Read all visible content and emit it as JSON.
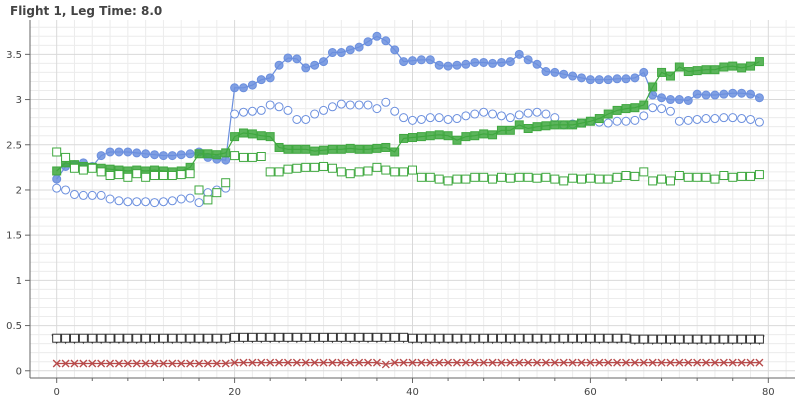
{
  "title": "Flight 1, Leg Time: 8.0",
  "colors": {
    "blue": "#6b8fde",
    "blue_line": "#4a6fd0",
    "green": "#3fa83f",
    "green_line": "#2a8a2a",
    "dark": "#333333",
    "red": "#b84b4b",
    "grid_major": "#d9d9d9",
    "grid_minor": "#ececec",
    "axis": "#666666",
    "tick_text": "#444444"
  },
  "chart_data": {
    "type": "line",
    "title": "Flight 1, Leg Time: 8.0",
    "xlabel": "",
    "ylabel": "",
    "xlim": [
      -3,
      83
    ],
    "ylim": [
      -0.08,
      3.88
    ],
    "x_ticks": [
      0,
      20,
      40,
      60,
      80
    ],
    "x_tick_labels": [
      "0",
      "20",
      "40",
      "60",
      "80"
    ],
    "y_ticks": [
      0,
      0.5,
      1,
      1.5,
      2,
      2.5,
      3,
      3.5
    ],
    "y_tick_labels": [
      "0",
      "0.5",
      "1",
      "1.5",
      "2",
      "2.5",
      "3",
      "3.5"
    ],
    "grid": true,
    "minor_grid": true,
    "series": [
      {
        "style": "blue-filled-circle",
        "marker": "circle",
        "filled": true,
        "line": true,
        "color": "#6b8fde",
        "x": [
          0,
          1,
          2,
          3,
          4,
          5,
          6,
          7,
          8,
          9,
          10,
          11,
          12,
          13,
          14,
          15,
          16,
          17,
          18,
          19,
          20,
          21,
          22,
          23,
          24,
          25,
          26,
          27,
          28,
          29,
          30,
          31,
          32,
          33,
          34,
          35,
          36,
          37,
          38,
          39,
          40,
          41,
          42,
          43,
          44,
          45,
          46,
          47,
          48,
          49,
          50,
          51,
          52,
          53,
          54,
          55,
          56,
          57,
          58,
          59,
          60,
          61,
          62,
          63,
          64,
          65,
          66,
          67,
          68,
          69,
          70,
          71,
          72,
          73,
          74,
          75,
          76,
          77,
          78,
          79
        ],
        "y": [
          2.12,
          2.26,
          2.28,
          2.3,
          2.26,
          2.38,
          2.42,
          2.42,
          2.42,
          2.41,
          2.4,
          2.39,
          2.38,
          2.38,
          2.39,
          2.4,
          2.42,
          2.36,
          2.34,
          2.33,
          3.13,
          3.13,
          3.16,
          3.22,
          3.24,
          3.38,
          3.46,
          3.45,
          3.35,
          3.38,
          3.42,
          3.52,
          3.52,
          3.55,
          3.58,
          3.64,
          3.7,
          3.65,
          3.55,
          3.42,
          3.43,
          3.44,
          3.44,
          3.38,
          3.37,
          3.38,
          3.39,
          3.41,
          3.41,
          3.4,
          3.41,
          3.42,
          3.5,
          3.44,
          3.39,
          3.31,
          3.3,
          3.28,
          3.26,
          3.24,
          3.22,
          3.22,
          3.22,
          3.23,
          3.23,
          3.24,
          3.3,
          3.05,
          3.02,
          3.0,
          3.0,
          2.99,
          3.06,
          3.05,
          3.05,
          3.06,
          3.07,
          3.07,
          3.06,
          3.02
        ]
      },
      {
        "style": "blue-open-circle",
        "marker": "circle",
        "filled": false,
        "line": false,
        "color": "#6b8fde",
        "x": [
          0,
          1,
          2,
          3,
          4,
          5,
          6,
          7,
          8,
          9,
          10,
          11,
          12,
          13,
          14,
          15,
          16,
          17,
          18,
          19,
          20,
          21,
          22,
          23,
          24,
          25,
          26,
          27,
          28,
          29,
          30,
          31,
          32,
          33,
          34,
          35,
          36,
          37,
          38,
          39,
          40,
          41,
          42,
          43,
          44,
          45,
          46,
          47,
          48,
          49,
          50,
          51,
          52,
          53,
          54,
          55,
          56,
          57,
          58,
          59,
          60,
          61,
          62,
          63,
          64,
          65,
          66,
          67,
          68,
          69,
          70,
          71,
          72,
          73,
          74,
          75,
          76,
          77,
          78,
          79
        ],
        "y": [
          2.02,
          2.0,
          1.95,
          1.94,
          1.94,
          1.94,
          1.9,
          1.88,
          1.87,
          1.87,
          1.87,
          1.86,
          1.87,
          1.88,
          1.9,
          1.91,
          1.86,
          1.97,
          2.0,
          2.02,
          2.84,
          2.86,
          2.87,
          2.88,
          2.94,
          2.92,
          2.88,
          2.78,
          2.78,
          2.84,
          2.88,
          2.92,
          2.95,
          2.94,
          2.94,
          2.94,
          2.9,
          2.97,
          2.87,
          2.8,
          2.77,
          2.78,
          2.8,
          2.8,
          2.78,
          2.79,
          2.82,
          2.84,
          2.86,
          2.84,
          2.82,
          2.8,
          2.83,
          2.85,
          2.86,
          2.84,
          2.8,
          2.72,
          2.73,
          2.74,
          2.76,
          2.75,
          2.74,
          2.76,
          2.76,
          2.77,
          2.82,
          2.91,
          2.9,
          2.87,
          2.76,
          2.77,
          2.78,
          2.79,
          2.79,
          2.8,
          2.8,
          2.79,
          2.78,
          2.75
        ]
      },
      {
        "style": "green-filled-square",
        "marker": "square",
        "filled": true,
        "line": true,
        "color": "#3fa83f",
        "x": [
          0,
          1,
          2,
          3,
          4,
          5,
          6,
          7,
          8,
          9,
          10,
          11,
          12,
          13,
          14,
          15,
          16,
          17,
          18,
          19,
          20,
          21,
          22,
          23,
          24,
          25,
          26,
          27,
          28,
          29,
          30,
          31,
          32,
          33,
          34,
          35,
          36,
          37,
          38,
          39,
          40,
          41,
          42,
          43,
          44,
          45,
          46,
          47,
          48,
          49,
          50,
          51,
          52,
          53,
          54,
          55,
          56,
          57,
          58,
          59,
          60,
          61,
          62,
          63,
          64,
          65,
          66,
          67,
          68,
          69,
          70,
          71,
          72,
          73,
          74,
          75,
          76,
          77,
          78,
          79
        ],
        "y": [
          2.21,
          2.3,
          2.28,
          2.26,
          2.25,
          2.24,
          2.23,
          2.22,
          2.21,
          2.22,
          2.21,
          2.22,
          2.21,
          2.2,
          2.21,
          2.25,
          2.4,
          2.4,
          2.39,
          2.41,
          2.59,
          2.63,
          2.62,
          2.6,
          2.59,
          2.47,
          2.45,
          2.45,
          2.45,
          2.43,
          2.44,
          2.45,
          2.45,
          2.46,
          2.45,
          2.45,
          2.46,
          2.47,
          2.42,
          2.57,
          2.58,
          2.59,
          2.6,
          2.61,
          2.6,
          2.55,
          2.59,
          2.6,
          2.62,
          2.61,
          2.66,
          2.66,
          2.72,
          2.68,
          2.7,
          2.71,
          2.72,
          2.72,
          2.72,
          2.74,
          2.76,
          2.79,
          2.84,
          2.88,
          2.9,
          2.91,
          2.94,
          3.14,
          3.3,
          3.26,
          3.36,
          3.31,
          3.32,
          3.33,
          3.33,
          3.36,
          3.37,
          3.35,
          3.37,
          3.42
        ]
      },
      {
        "style": "green-open-square",
        "marker": "square",
        "filled": false,
        "line": false,
        "color": "#3fa83f",
        "x": [
          0,
          1,
          2,
          3,
          4,
          5,
          6,
          7,
          8,
          9,
          10,
          11,
          12,
          13,
          14,
          15,
          16,
          17,
          18,
          19,
          20,
          21,
          22,
          23,
          24,
          25,
          26,
          27,
          28,
          29,
          30,
          31,
          32,
          33,
          34,
          35,
          36,
          37,
          38,
          39,
          40,
          41,
          42,
          43,
          44,
          45,
          46,
          47,
          48,
          49,
          50,
          51,
          52,
          53,
          54,
          55,
          56,
          57,
          58,
          59,
          60,
          61,
          62,
          63,
          64,
          65,
          66,
          67,
          68,
          69,
          70,
          71,
          72,
          73,
          74,
          75,
          76,
          77,
          78,
          79
        ],
        "y": [
          2.42,
          2.36,
          2.24,
          2.22,
          2.24,
          2.2,
          2.16,
          2.17,
          2.14,
          2.18,
          2.14,
          2.16,
          2.16,
          2.16,
          2.17,
          2.18,
          2.0,
          1.89,
          1.97,
          2.08,
          2.38,
          2.36,
          2.36,
          2.37,
          2.2,
          2.2,
          2.23,
          2.24,
          2.25,
          2.25,
          2.26,
          2.24,
          2.2,
          2.18,
          2.2,
          2.21,
          2.25,
          2.22,
          2.2,
          2.2,
          2.22,
          2.14,
          2.14,
          2.12,
          2.1,
          2.12,
          2.12,
          2.14,
          2.14,
          2.12,
          2.14,
          2.13,
          2.14,
          2.14,
          2.13,
          2.14,
          2.12,
          2.1,
          2.13,
          2.12,
          2.13,
          2.12,
          2.12,
          2.14,
          2.16,
          2.15,
          2.2,
          2.1,
          2.12,
          2.1,
          2.16,
          2.14,
          2.14,
          2.14,
          2.12,
          2.16,
          2.14,
          2.15,
          2.15,
          2.17
        ]
      },
      {
        "style": "black-triangle-down",
        "marker": "triangle-down",
        "filled": true,
        "line": true,
        "color": "#333333",
        "x": [
          0,
          1,
          2,
          3,
          4,
          5,
          6,
          7,
          8,
          9,
          10,
          11,
          12,
          13,
          14,
          15,
          16,
          17,
          18,
          19,
          20,
          21,
          22,
          23,
          24,
          25,
          26,
          27,
          28,
          29,
          30,
          31,
          32,
          33,
          34,
          35,
          36,
          37,
          38,
          39,
          40,
          41,
          42,
          43,
          44,
          45,
          46,
          47,
          48,
          49,
          50,
          51,
          52,
          53,
          54,
          55,
          56,
          57,
          58,
          59,
          60,
          61,
          62,
          63,
          64,
          65,
          66,
          67,
          68,
          69,
          70,
          71,
          72,
          73,
          74,
          75,
          76,
          77,
          78,
          79
        ],
        "y": [
          0.35,
          0.35,
          0.35,
          0.35,
          0.35,
          0.35,
          0.35,
          0.35,
          0.35,
          0.35,
          0.35,
          0.35,
          0.35,
          0.35,
          0.35,
          0.35,
          0.35,
          0.35,
          0.35,
          0.35,
          0.36,
          0.36,
          0.36,
          0.36,
          0.36,
          0.36,
          0.36,
          0.36,
          0.36,
          0.36,
          0.36,
          0.36,
          0.36,
          0.36,
          0.36,
          0.36,
          0.36,
          0.36,
          0.36,
          0.36,
          0.35,
          0.35,
          0.35,
          0.35,
          0.35,
          0.35,
          0.35,
          0.35,
          0.35,
          0.35,
          0.35,
          0.35,
          0.35,
          0.35,
          0.35,
          0.35,
          0.35,
          0.35,
          0.35,
          0.35,
          0.35,
          0.35,
          0.35,
          0.35,
          0.35,
          0.34,
          0.34,
          0.34,
          0.34,
          0.34,
          0.34,
          0.34,
          0.34,
          0.34,
          0.34,
          0.34,
          0.34,
          0.34,
          0.34,
          0.34
        ]
      },
      {
        "style": "black-open-square",
        "marker": "square",
        "filled": false,
        "line": false,
        "color": "#333333",
        "x": [
          0,
          1,
          2,
          3,
          4,
          5,
          6,
          7,
          8,
          9,
          10,
          11,
          12,
          13,
          14,
          15,
          16,
          17,
          18,
          19,
          20,
          21,
          22,
          23,
          24,
          25,
          26,
          27,
          28,
          29,
          30,
          31,
          32,
          33,
          34,
          35,
          36,
          37,
          38,
          39,
          40,
          41,
          42,
          43,
          44,
          45,
          46,
          47,
          48,
          49,
          50,
          51,
          52,
          53,
          54,
          55,
          56,
          57,
          58,
          59,
          60,
          61,
          62,
          63,
          64,
          65,
          66,
          67,
          68,
          69,
          70,
          71,
          72,
          73,
          74,
          75,
          76,
          77,
          78,
          79
        ],
        "y": [
          0.36,
          0.36,
          0.36,
          0.36,
          0.36,
          0.36,
          0.36,
          0.36,
          0.36,
          0.36,
          0.36,
          0.36,
          0.36,
          0.36,
          0.36,
          0.36,
          0.36,
          0.36,
          0.36,
          0.36,
          0.37,
          0.37,
          0.37,
          0.37,
          0.37,
          0.37,
          0.37,
          0.37,
          0.37,
          0.37,
          0.37,
          0.37,
          0.37,
          0.37,
          0.37,
          0.37,
          0.37,
          0.37,
          0.37,
          0.37,
          0.36,
          0.36,
          0.36,
          0.36,
          0.36,
          0.36,
          0.36,
          0.36,
          0.36,
          0.36,
          0.36,
          0.36,
          0.36,
          0.36,
          0.36,
          0.36,
          0.36,
          0.36,
          0.36,
          0.36,
          0.36,
          0.36,
          0.36,
          0.36,
          0.36,
          0.35,
          0.35,
          0.35,
          0.35,
          0.35,
          0.35,
          0.35,
          0.35,
          0.35,
          0.35,
          0.35,
          0.35,
          0.35,
          0.35,
          0.35
        ]
      },
      {
        "style": "red-x",
        "marker": "x",
        "filled": false,
        "line": true,
        "color": "#b84b4b",
        "x": [
          0,
          1,
          2,
          3,
          4,
          5,
          6,
          7,
          8,
          9,
          10,
          11,
          12,
          13,
          14,
          15,
          16,
          17,
          18,
          19,
          20,
          21,
          22,
          23,
          24,
          25,
          26,
          27,
          28,
          29,
          30,
          31,
          32,
          33,
          34,
          35,
          36,
          37,
          38,
          39,
          40,
          41,
          42,
          43,
          44,
          45,
          46,
          47,
          48,
          49,
          50,
          51,
          52,
          53,
          54,
          55,
          56,
          57,
          58,
          59,
          60,
          61,
          62,
          63,
          64,
          65,
          66,
          67,
          68,
          69,
          70,
          71,
          72,
          73,
          74,
          75,
          76,
          77,
          78,
          79
        ],
        "y": [
          0.08,
          0.08,
          0.08,
          0.08,
          0.08,
          0.08,
          0.08,
          0.08,
          0.08,
          0.08,
          0.08,
          0.08,
          0.08,
          0.08,
          0.08,
          0.08,
          0.08,
          0.08,
          0.08,
          0.08,
          0.09,
          0.09,
          0.09,
          0.09,
          0.09,
          0.09,
          0.09,
          0.09,
          0.09,
          0.09,
          0.09,
          0.09,
          0.09,
          0.09,
          0.09,
          0.09,
          0.09,
          0.07,
          0.09,
          0.09,
          0.09,
          0.09,
          0.09,
          0.09,
          0.09,
          0.09,
          0.09,
          0.09,
          0.09,
          0.09,
          0.09,
          0.09,
          0.09,
          0.09,
          0.09,
          0.09,
          0.09,
          0.09,
          0.09,
          0.09,
          0.09,
          0.09,
          0.09,
          0.09,
          0.09,
          0.09,
          0.09,
          0.09,
          0.09,
          0.09,
          0.09,
          0.09,
          0.09,
          0.09,
          0.09,
          0.09,
          0.09,
          0.09,
          0.09,
          0.09
        ]
      }
    ]
  }
}
